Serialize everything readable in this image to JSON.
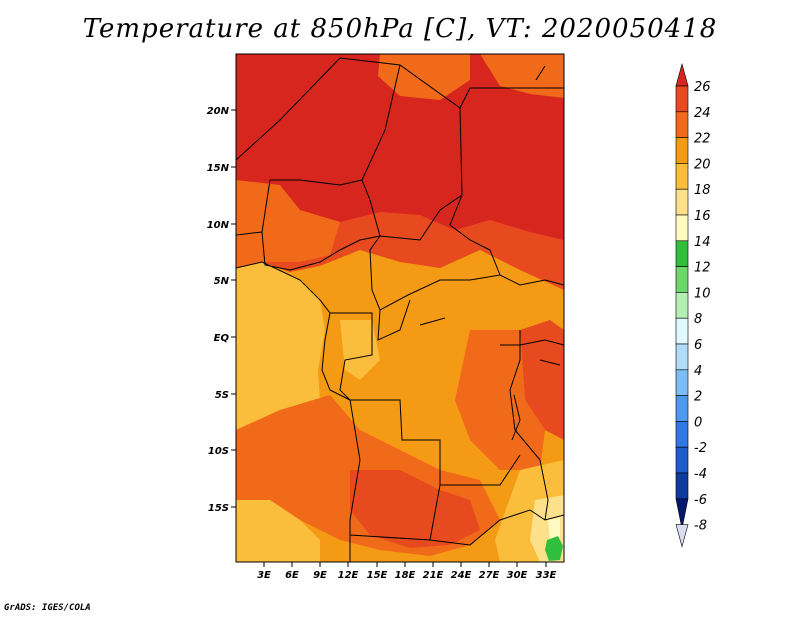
{
  "title": "Temperature at 850hPa [C], VT: 2020050418",
  "credit": "GrADS: IGES/COLA",
  "map": {
    "lon_labels": [
      "3E",
      "6E",
      "9E",
      "12E",
      "15E",
      "18E",
      "21E",
      "24E",
      "27E",
      "30E",
      "33E"
    ],
    "lat_labels": [
      "20N",
      "15N",
      "10N",
      "5N",
      "EQ",
      "5S",
      "10S",
      "15S"
    ]
  },
  "colorbar": {
    "labels": [
      "26",
      "24",
      "22",
      "20",
      "18",
      "16",
      "14",
      "12",
      "10",
      "8",
      "6",
      "4",
      "2",
      "0",
      "-2",
      "-4",
      "-6",
      "-8"
    ],
    "colors": [
      "#d7261e",
      "#e64a1e",
      "#f06a1a",
      "#f59a14",
      "#fbbd3c",
      "#fde08a",
      "#fff9c2",
      "#2fbf3c",
      "#6cd86c",
      "#b4f0b4",
      "#e0f8ff",
      "#b0dcfa",
      "#7cbdf5",
      "#4b9af0",
      "#2f78e6",
      "#1f5ccc",
      "#0f3aa0",
      "#08176e"
    ]
  },
  "chart_data": {
    "type": "heatmap",
    "title": "Temperature at 850hPa [C], VT: 2020050418",
    "units": "C",
    "x_axis": [
      "3E",
      "6E",
      "9E",
      "12E",
      "15E",
      "18E",
      "21E",
      "24E",
      "27E",
      "30E",
      "33E"
    ],
    "y_axis": [
      "20N",
      "15N",
      "10N",
      "5N",
      "EQ",
      "5S",
      "10S",
      "15S"
    ],
    "color_levels": [
      -8,
      -6,
      -4,
      -2,
      0,
      2,
      4,
      6,
      8,
      10,
      12,
      14,
      16,
      18,
      20,
      22,
      24,
      26
    ]
  }
}
